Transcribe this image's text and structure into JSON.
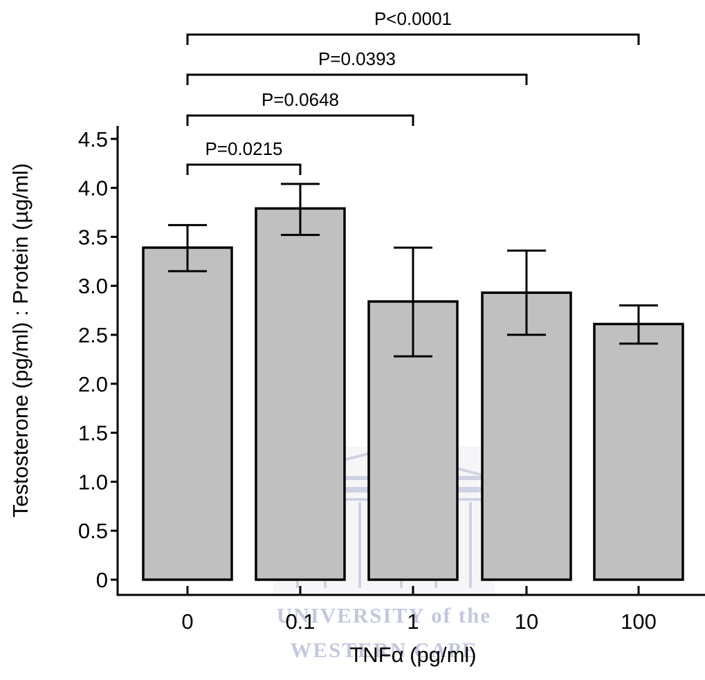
{
  "chart_data": {
    "type": "bar",
    "categories": [
      "0",
      "0.1",
      "1",
      "10",
      "100"
    ],
    "values": [
      3.39,
      3.79,
      2.84,
      2.93,
      2.61
    ],
    "errors": [
      [
        3.15,
        3.62
      ],
      [
        3.52,
        4.04
      ],
      [
        2.28,
        3.39
      ],
      [
        2.5,
        3.36
      ],
      [
        2.41,
        2.8
      ]
    ],
    "xlabel": "TNFα (pg/ml)",
    "ylabel": "Testosterone (pg/ml) : Protein (µg/ml)",
    "ylim": [
      0,
      4.6
    ],
    "yticks": [
      "0",
      "0.5",
      "1.0",
      "1.5",
      "2.0",
      "2.5",
      "3.0",
      "3.5",
      "4.0",
      "4.5"
    ],
    "ytick_values": [
      0,
      0.5,
      1.0,
      1.5,
      2.0,
      2.5,
      3.0,
      3.5,
      4.0,
      4.5
    ],
    "bar_color": "#c0c0c0",
    "grid": false,
    "comparisons": [
      {
        "from": 0,
        "to": 1,
        "label": "P=0.0215"
      },
      {
        "from": 0,
        "to": 2,
        "label": "P=0.0648"
      },
      {
        "from": 0,
        "to": 3,
        "label": "P=0.0393"
      },
      {
        "from": 0,
        "to": 4,
        "label": "P<0.0001"
      }
    ]
  },
  "watermark": {
    "line1": "UNIVERSITY of the",
    "line2": "WESTERN CAPE",
    "color": "#8890b8"
  }
}
